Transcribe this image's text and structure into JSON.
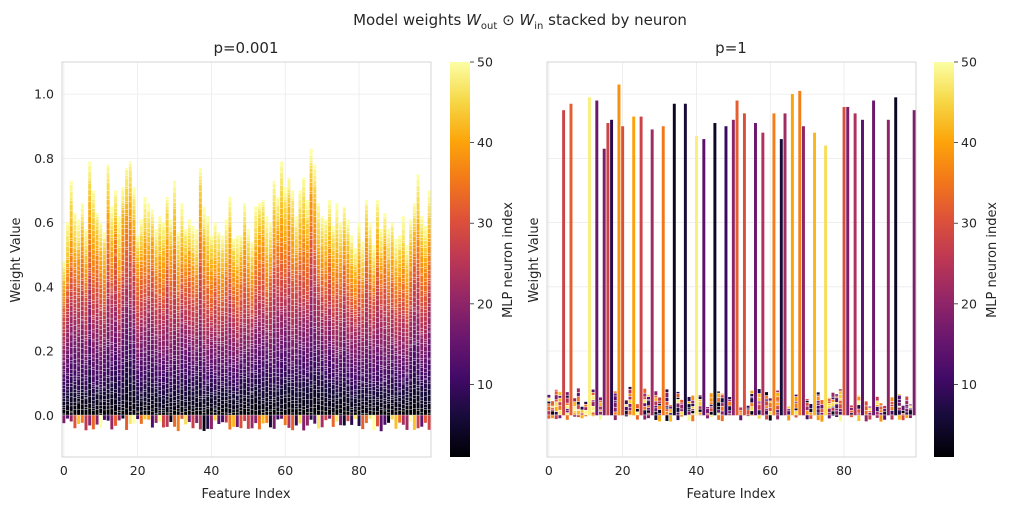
{
  "figure": {
    "suptitle_prefix": "Model weights ",
    "suptitle_w": "W",
    "suptitle_sub_out": "out",
    "suptitle_odot": " ⊙ ",
    "suptitle_sub_in": "in",
    "suptitle_suffix": " stacked by neuron"
  },
  "chart_data": [
    {
      "type": "bar",
      "stacked": true,
      "title": "p=0.001",
      "xlabel": "Feature Index",
      "ylabel": "Weight Value",
      "xlim": [
        -0.5,
        99.5
      ],
      "ylim": [
        -0.13,
        1.1
      ],
      "xticks": [
        0,
        20,
        40,
        60,
        80
      ],
      "yticks": [
        0.0,
        0.2,
        0.4,
        0.6,
        0.8,
        1.0
      ],
      "ytick_labels": [
        "0.0",
        "0.2",
        "0.4",
        "0.6",
        "0.8",
        "1.0"
      ],
      "n_features": 100,
      "n_neurons": 50,
      "bar_totals_approx": [
        0.48,
        0.6,
        0.73,
        0.63,
        0.61,
        0.66,
        0.58,
        0.79,
        0.7,
        0.63,
        0.6,
        0.57,
        0.78,
        0.65,
        0.7,
        0.62,
        0.71,
        0.77,
        0.79,
        0.71,
        0.56,
        0.61,
        0.68,
        0.66,
        0.64,
        0.58,
        0.62,
        0.6,
        0.68,
        0.61,
        0.73,
        0.57,
        0.66,
        0.58,
        0.61,
        0.59,
        0.58,
        0.77,
        0.65,
        0.62,
        0.56,
        0.6,
        0.57,
        0.56,
        0.61,
        0.68,
        0.55,
        0.56,
        0.56,
        0.66,
        0.58,
        0.54,
        0.65,
        0.66,
        0.67,
        0.62,
        0.6,
        0.73,
        0.68,
        0.79,
        0.71,
        0.74,
        0.7,
        0.62,
        0.7,
        0.74,
        0.67,
        0.83,
        0.78,
        0.66,
        0.62,
        0.61,
        0.67,
        0.59,
        0.66,
        0.6,
        0.65,
        0.61,
        0.56,
        0.52,
        0.6,
        0.54,
        0.67,
        0.6,
        0.53,
        0.67,
        0.58,
        0.63,
        0.58,
        0.6,
        0.55,
        0.56,
        0.62,
        0.53,
        0.61,
        0.66,
        0.75,
        0.62,
        0.59,
        0.7
      ],
      "colorbar": {
        "label": "MLP neuron index",
        "range": [
          1,
          50
        ],
        "ticks": [
          10,
          20,
          30,
          40,
          50
        ],
        "tick_labels": [
          "10",
          "20",
          "30",
          "40",
          "50"
        ],
        "colormap": "inferno"
      }
    },
    {
      "type": "bar",
      "stacked": true,
      "title": "p=1",
      "xlabel": "Feature Index",
      "ylabel": "Weight Value",
      "xlim": [
        -0.5,
        99.5
      ],
      "ylim": [
        -0.13,
        1.1
      ],
      "xticks": [
        0,
        20,
        40,
        60,
        80
      ],
      "n_features": 100,
      "dominant_bars": [
        {
          "feature": 4,
          "value": 0.95,
          "neuron": 28
        },
        {
          "feature": 6,
          "value": 0.97,
          "neuron": 32
        },
        {
          "feature": 11,
          "value": 0.99,
          "neuron": 48
        },
        {
          "feature": 13,
          "value": 0.98,
          "neuron": 16
        },
        {
          "feature": 15,
          "value": 0.83,
          "neuron": 18
        },
        {
          "feature": 16,
          "value": 0.91,
          "neuron": 28
        },
        {
          "feature": 17,
          "value": 0.92,
          "neuron": 8
        },
        {
          "feature": 19,
          "value": 1.03,
          "neuron": 38
        },
        {
          "feature": 20,
          "value": 0.9,
          "neuron": 30
        },
        {
          "feature": 23,
          "value": 0.93,
          "neuron": 40
        },
        {
          "feature": 25,
          "value": 0.93,
          "neuron": 28
        },
        {
          "feature": 28,
          "value": 0.89,
          "neuron": 22
        },
        {
          "feature": 31,
          "value": 0.9,
          "neuron": 35
        },
        {
          "feature": 34,
          "value": 0.97,
          "neuron": 4
        },
        {
          "feature": 37,
          "value": 0.97,
          "neuron": 6
        },
        {
          "feature": 40,
          "value": 0.87,
          "neuron": 48
        },
        {
          "feature": 42,
          "value": 0.86,
          "neuron": 14
        },
        {
          "feature": 45,
          "value": 0.91,
          "neuron": 4
        },
        {
          "feature": 48,
          "value": 0.9,
          "neuron": 10
        },
        {
          "feature": 50,
          "value": 0.92,
          "neuron": 20
        },
        {
          "feature": 51,
          "value": 0.98,
          "neuron": 32
        },
        {
          "feature": 53,
          "value": 0.94,
          "neuron": 30
        },
        {
          "feature": 56,
          "value": 0.91,
          "neuron": 16
        },
        {
          "feature": 58,
          "value": 0.88,
          "neuron": 24
        },
        {
          "feature": 61,
          "value": 0.94,
          "neuron": 36
        },
        {
          "feature": 63,
          "value": 0.86,
          "neuron": 6
        },
        {
          "feature": 64,
          "value": 0.94,
          "neuron": 22
        },
        {
          "feature": 66,
          "value": 1.0,
          "neuron": 40
        },
        {
          "feature": 68,
          "value": 1.01,
          "neuron": 36
        },
        {
          "feature": 69,
          "value": 0.9,
          "neuron": 20
        },
        {
          "feature": 72,
          "value": 0.88,
          "neuron": 42
        },
        {
          "feature": 75,
          "value": 0.84,
          "neuron": 46
        },
        {
          "feature": 80,
          "value": 0.96,
          "neuron": 30
        },
        {
          "feature": 81,
          "value": 0.96,
          "neuron": 18
        },
        {
          "feature": 83,
          "value": 0.94,
          "neuron": 24
        },
        {
          "feature": 85,
          "value": 0.92,
          "neuron": 14
        },
        {
          "feature": 88,
          "value": 0.98,
          "neuron": 16
        },
        {
          "feature": 92,
          "value": 0.92,
          "neuron": 20
        },
        {
          "feature": 94,
          "value": 0.99,
          "neuron": 4
        },
        {
          "feature": 99,
          "value": 0.95,
          "neuron": 18
        }
      ],
      "colorbar": {
        "label": "MLP neuron index",
        "range": [
          1,
          50
        ],
        "ticks": [
          10,
          20,
          30,
          40,
          50
        ],
        "tick_labels": [
          "10",
          "20",
          "30",
          "40",
          "50"
        ],
        "colormap": "inferno"
      }
    }
  ]
}
